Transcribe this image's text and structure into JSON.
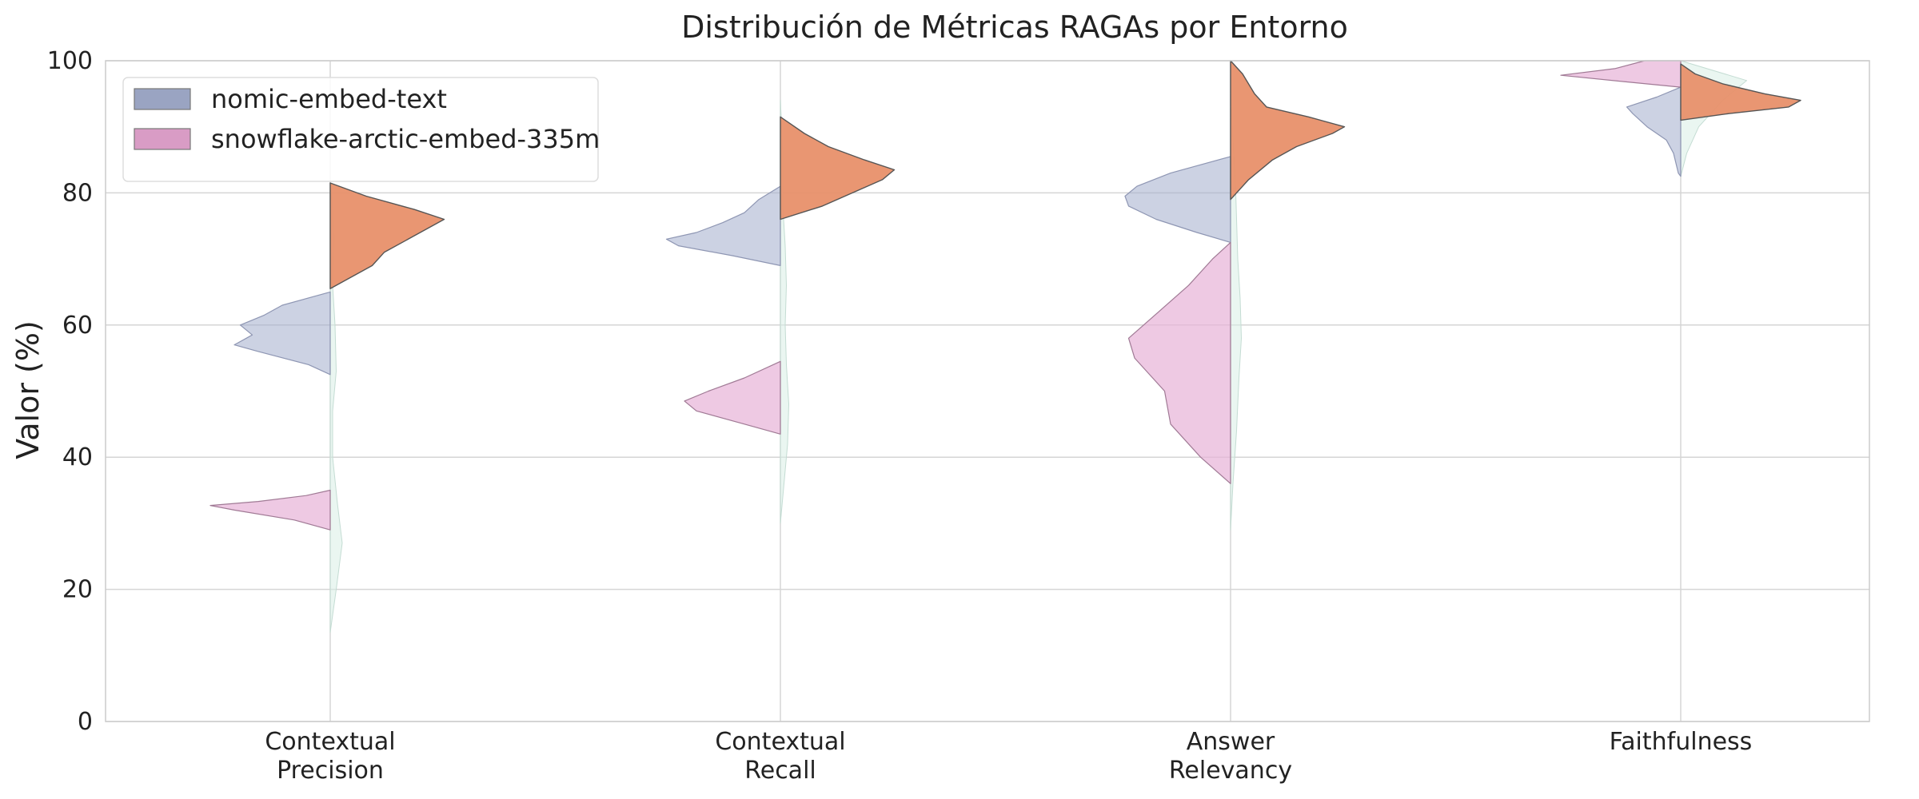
{
  "chart_data": {
    "type": "violin",
    "title": "Distribución de Métricas RAGAs por Entorno",
    "xlabel": "",
    "ylabel": "Valor (%)",
    "ylim": [
      0,
      100
    ],
    "yticks": [
      0,
      20,
      40,
      60,
      80,
      100
    ],
    "grid": true,
    "legend_position": "top-left",
    "categories": [
      {
        "name": "Contextual\nPrecision",
        "lines": [
          "Contextual",
          "Precision"
        ]
      },
      {
        "name": "Contextual\nRecall",
        "lines": [
          "Contextual",
          "Recall"
        ]
      },
      {
        "name": "Answer\nRelevancy",
        "lines": [
          "Answer",
          "Relevancy"
        ]
      },
      {
        "name": "Faithfulness",
        "lines": [
          "Faithfulness"
        ]
      }
    ],
    "series": [
      {
        "name": "nomic-embed-text",
        "side": "left",
        "color": "#a3adcc",
        "legend_color": "#9aa4c2",
        "violins": [
          {
            "profile": [
              [
                52.5,
                0
              ],
              [
                54,
                0.18
              ],
              [
                56,
                0.6
              ],
              [
                57,
                0.8
              ],
              [
                58.5,
                0.65
              ],
              [
                60,
                0.75
              ],
              [
                61.5,
                0.55
              ],
              [
                63,
                0.4
              ],
              [
                65,
                0
              ]
            ]
          },
          {
            "profile": [
              [
                69,
                0
              ],
              [
                70.5,
                0.4
              ],
              [
                72,
                0.85
              ],
              [
                73,
                0.95
              ],
              [
                74,
                0.7
              ],
              [
                75.5,
                0.48
              ],
              [
                77,
                0.3
              ],
              [
                79,
                0.18
              ],
              [
                81,
                0
              ]
            ]
          },
          {
            "profile": [
              [
                72.5,
                0
              ],
              [
                74,
                0.28
              ],
              [
                76,
                0.62
              ],
              [
                78,
                0.85
              ],
              [
                79.5,
                0.88
              ],
              [
                81,
                0.78
              ],
              [
                83,
                0.5
              ],
              [
                85.5,
                0
              ]
            ]
          },
          {
            "profile": [
              [
                96,
                0
              ],
              [
                94.5,
                0.2
              ],
              [
                93,
                0.45
              ],
              [
                92,
                0.4
              ],
              [
                90,
                0.28
              ],
              [
                88,
                0.12
              ],
              [
                86,
                0.06
              ],
              [
                83,
                0.02
              ],
              [
                82.5,
                0
              ]
            ]
          }
        ]
      },
      {
        "name": "snowflake-arctic-embed-335m",
        "side": "left",
        "color": "#e7b2d7",
        "legend_color": "#d99cc5",
        "violins": [
          {
            "profile": [
              [
                29,
                0
              ],
              [
                30.5,
                0.3
              ],
              [
                32,
                0.8
              ],
              [
                32.7,
                1.0
              ],
              [
                33.3,
                0.6
              ],
              [
                34.2,
                0.2
              ],
              [
                35,
                0
              ]
            ]
          },
          {
            "profile": [
              [
                43.5,
                0
              ],
              [
                45,
                0.3
              ],
              [
                47,
                0.7
              ],
              [
                48.5,
                0.8
              ],
              [
                50,
                0.6
              ],
              [
                52,
                0.3
              ],
              [
                54.5,
                0
              ]
            ]
          },
          {
            "profile": [
              [
                36,
                0
              ],
              [
                40,
                0.25
              ],
              [
                45,
                0.5
              ],
              [
                50,
                0.55
              ],
              [
                55,
                0.8
              ],
              [
                58,
                0.85
              ],
              [
                62,
                0.6
              ],
              [
                66,
                0.35
              ],
              [
                70,
                0.15
              ],
              [
                72.5,
                0
              ]
            ]
          },
          {
            "profile": [
              [
                96,
                0
              ],
              [
                96.8,
                0.45
              ],
              [
                97.8,
                1.0
              ],
              [
                98.8,
                0.55
              ],
              [
                100,
                0.3
              ]
            ]
          }
        ]
      },
      {
        "name": "",
        "side": "right",
        "color": "#e8906a",
        "violins": [
          {
            "profile": [
              [
                65.5,
                0
              ],
              [
                67,
                0.15
              ],
              [
                69,
                0.35
              ],
              [
                71,
                0.45
              ],
              [
                73,
                0.65
              ],
              [
                75,
                0.85
              ],
              [
                76,
                0.95
              ],
              [
                77.5,
                0.7
              ],
              [
                79.5,
                0.3
              ],
              [
                81.5,
                0
              ]
            ]
          },
          {
            "profile": [
              [
                76,
                0
              ],
              [
                78,
                0.35
              ],
              [
                80,
                0.6
              ],
              [
                82,
                0.85
              ],
              [
                83.5,
                0.95
              ],
              [
                85,
                0.7
              ],
              [
                87,
                0.4
              ],
              [
                89,
                0.2
              ],
              [
                91.5,
                0
              ]
            ]
          },
          {
            "profile": [
              [
                79,
                0
              ],
              [
                82,
                0.15
              ],
              [
                85,
                0.35
              ],
              [
                87,
                0.55
              ],
              [
                89,
                0.85
              ],
              [
                90,
                0.95
              ],
              [
                91.5,
                0.65
              ],
              [
                93,
                0.3
              ],
              [
                95,
                0.2
              ],
              [
                98,
                0.1
              ],
              [
                100,
                0
              ]
            ]
          },
          {
            "profile": [
              [
                91,
                0
              ],
              [
                92,
                0.4
              ],
              [
                93,
                0.9
              ],
              [
                94,
                1.0
              ],
              [
                95,
                0.7
              ],
              [
                96.5,
                0.35
              ],
              [
                98,
                0.12
              ],
              [
                99.5,
                0
              ]
            ]
          }
        ]
      },
      {
        "name": "",
        "side": "right",
        "color": "#d8eee6",
        "violins": [
          {
            "profile": [
              [
                13.5,
                0
              ],
              [
                20,
                0.05
              ],
              [
                27,
                0.1
              ],
              [
                33,
                0.06
              ],
              [
                40,
                0.02
              ],
              [
                47,
                0.02
              ],
              [
                53,
                0.05
              ],
              [
                60,
                0.04
              ],
              [
                66,
                0.02
              ],
              [
                73,
                0.03
              ],
              [
                78,
                0.02
              ],
              [
                81,
                0
              ]
            ]
          },
          {
            "profile": [
              [
                30,
                0
              ],
              [
                36,
                0.03
              ],
              [
                42,
                0.06
              ],
              [
                48,
                0.07
              ],
              [
                54,
                0.05
              ],
              [
                60,
                0.04
              ],
              [
                66,
                0.05
              ],
              [
                72,
                0.04
              ],
              [
                78,
                0.02
              ],
              [
                86,
                0.02
              ],
              [
                94,
                0
              ]
            ]
          },
          {
            "profile": [
              [
                29,
                0
              ],
              [
                36,
                0.02
              ],
              [
                44,
                0.05
              ],
              [
                52,
                0.07
              ],
              [
                58,
                0.09
              ],
              [
                64,
                0.08
              ],
              [
                70,
                0.06
              ],
              [
                76,
                0.05
              ],
              [
                82,
                0.04
              ],
              [
                88,
                0.02
              ],
              [
                96,
                0
              ]
            ]
          },
          {
            "profile": [
              [
                82.5,
                0
              ],
              [
                86,
                0.05
              ],
              [
                90,
                0.15
              ],
              [
                94,
                0.35
              ],
              [
                97,
                0.55
              ],
              [
                100,
                0
              ]
            ]
          }
        ]
      }
    ]
  }
}
